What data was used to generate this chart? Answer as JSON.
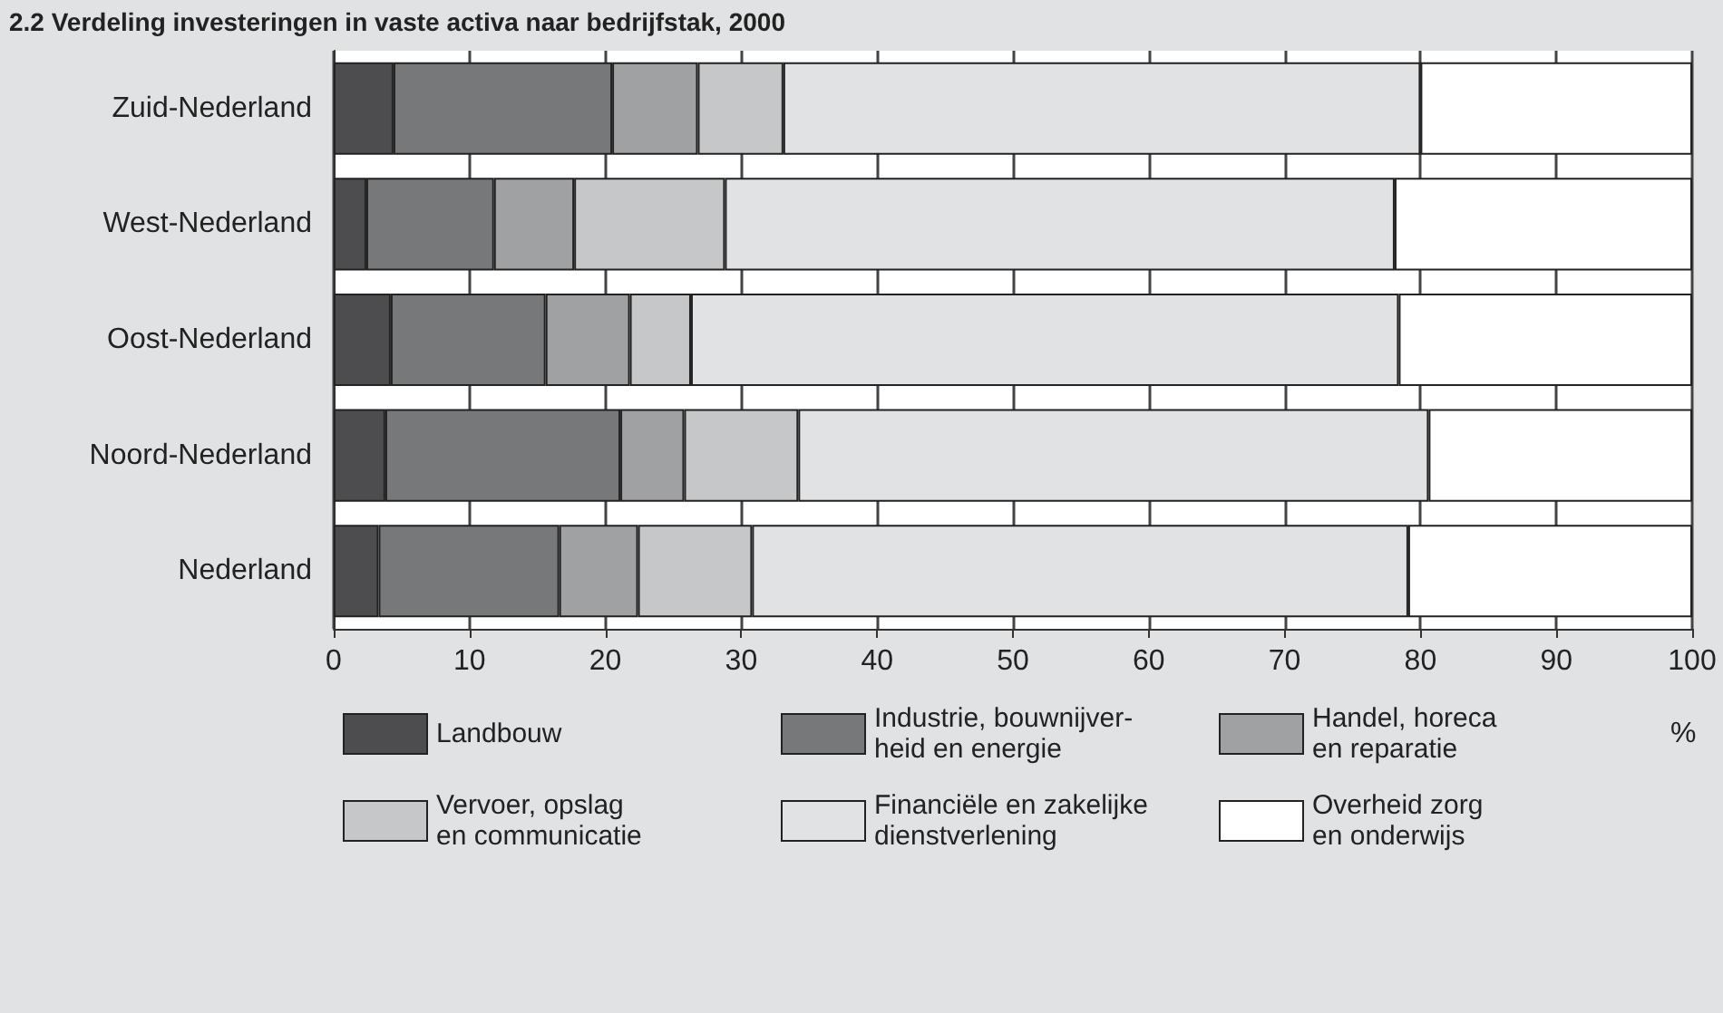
{
  "chart_data": {
    "type": "bar",
    "orientation": "horizontal",
    "stacked": true,
    "title": "2.2 Verdeling investeringen in vaste activa naar bedrijfstak, 2000",
    "xlabel": "%",
    "categories": [
      "Zuid-Nederland",
      "West-Nederland",
      "Oost-Nederland",
      "Noord-Nederland",
      "Nederland"
    ],
    "series": [
      {
        "name": "Landbouw",
        "color": "#4d4d4f",
        "values": [
          4.4,
          2.4,
          4.2,
          3.8,
          3.3
        ]
      },
      {
        "name": "Industrie, bouwnijver-\nheid en energie",
        "color": "#77787a",
        "values": [
          16.1,
          9.4,
          11.4,
          17.3,
          13.3
        ]
      },
      {
        "name": "Handel, horeca\nen reparatie",
        "color": "#a0a1a3",
        "values": [
          6.3,
          5.9,
          6.2,
          4.7,
          5.8
        ]
      },
      {
        "name": "Vervoer, opslag\nen communicatie",
        "color": "#c6c7c9",
        "values": [
          6.3,
          11.1,
          4.5,
          8.4,
          8.4
        ]
      },
      {
        "name": "Financiële en zakelijke\ndienstverlening",
        "color": "#e1e2e4",
        "values": [
          46.9,
          49.3,
          52.1,
          46.4,
          48.3
        ]
      },
      {
        "name": "Overheid zorg\nen onderwijs",
        "color": "#ffffff",
        "values": [
          20.0,
          21.9,
          21.6,
          19.4,
          20.9
        ]
      }
    ],
    "xlim": [
      0,
      100
    ],
    "xticks": [
      0,
      10,
      20,
      30,
      40,
      50,
      60,
      70,
      80,
      90,
      100
    ],
    "grid": "x",
    "legend": "bottom"
  }
}
